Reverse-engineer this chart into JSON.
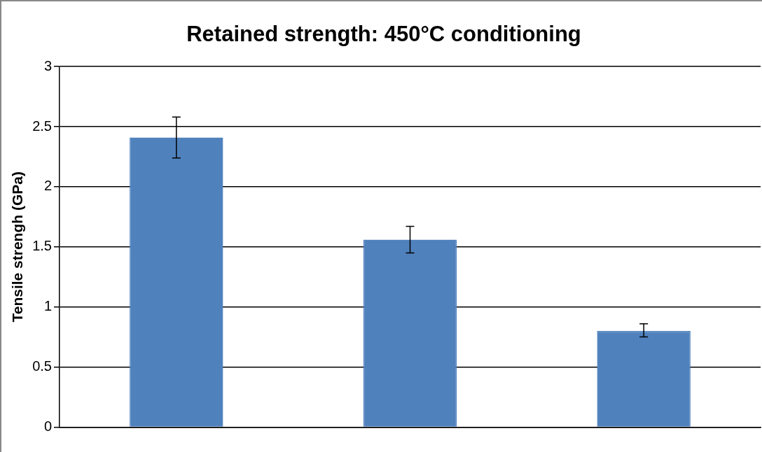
{
  "chart_data": {
    "type": "bar",
    "title": "Retained strength: 450°C conditioning",
    "ylabel": "Tensile strengh (GPa)",
    "categories": [
      null,
      null,
      null
    ],
    "values": [
      2.41,
      1.56,
      0.8
    ],
    "errors": [
      [
        2.24,
        2.58
      ],
      [
        1.45,
        1.67
      ],
      [
        0.75,
        0.86
      ]
    ],
    "color": "#4f81bd",
    "ylim": [
      0,
      3
    ],
    "yticks": [
      0,
      0.5,
      1,
      1.5,
      2,
      2.5,
      3
    ],
    "grid": "y",
    "legend": false
  }
}
